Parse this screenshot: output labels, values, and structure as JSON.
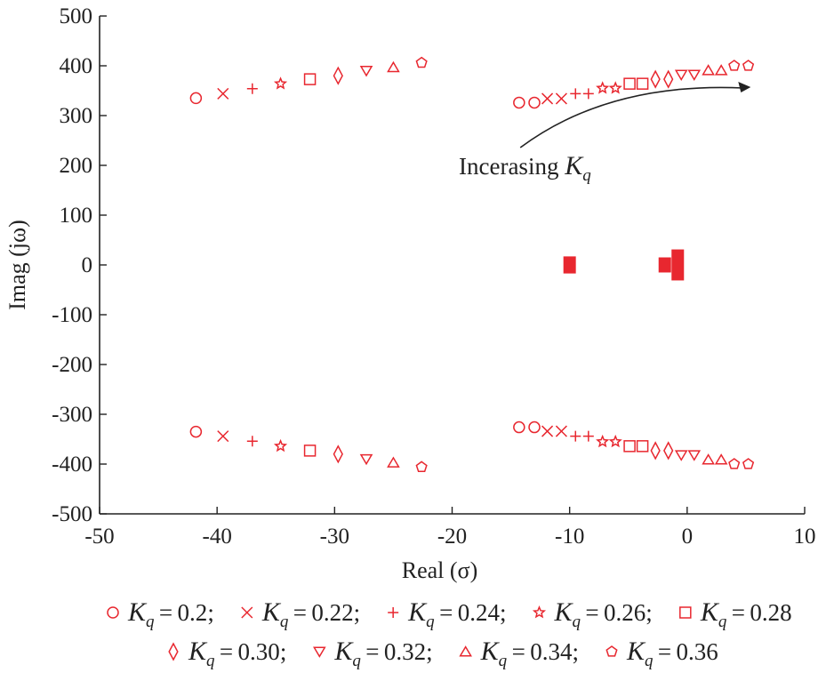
{
  "chart_data": {
    "type": "scatter",
    "xlabel": "Real (σ)",
    "ylabel": "Imag (jω)",
    "xlim": [
      -50,
      10
    ],
    "ylim": [
      -500,
      500
    ],
    "x_ticks": [
      -50,
      -40,
      -30,
      -20,
      -10,
      0,
      10
    ],
    "y_ticks": [
      500,
      400,
      300,
      200,
      100,
      0,
      -100,
      -200,
      -300,
      -400,
      -500
    ],
    "x_tick_labels": [
      "-50",
      "-40",
      "-30",
      "-20",
      "-10",
      "0",
      "10"
    ],
    "y_tick_labels": [
      "500",
      "400",
      "300",
      "200",
      "100",
      "0",
      "-100",
      "-200",
      "-300",
      "-400",
      "-500"
    ],
    "grid": false,
    "marker_color": "#e8272f",
    "annotation": {
      "text": "Incerasing ",
      "symbol": "K",
      "subscript": "q",
      "arrow_from": [
        -14.5,
        250
      ],
      "arrow_to": [
        4.5,
        350
      ]
    },
    "series": [
      {
        "name": "K_q = 0.2",
        "legend_label": "; ",
        "legend_value": "0.2",
        "marker": "circle",
        "points": [
          [
            -41.8,
            335
          ],
          [
            -41.8,
            -335
          ],
          [
            -14.3,
            326
          ],
          [
            -14.3,
            -326
          ],
          [
            -13.0,
            326
          ],
          [
            -13.0,
            -326
          ]
        ]
      },
      {
        "name": "K_q = 0.22",
        "legend_label": "; ",
        "legend_value": "0.22",
        "marker": "x",
        "points": [
          [
            -39.5,
            344
          ],
          [
            -39.5,
            -344
          ],
          [
            -11.9,
            334
          ],
          [
            -11.9,
            -334
          ],
          [
            -10.7,
            334
          ],
          [
            -10.7,
            -334
          ]
        ]
      },
      {
        "name": "K_q = 0.24",
        "legend_label": "; ",
        "legend_value": "0.24",
        "marker": "plus",
        "points": [
          [
            -37.0,
            354
          ],
          [
            -37.0,
            -354
          ],
          [
            -9.5,
            344
          ],
          [
            -9.5,
            -344
          ],
          [
            -8.4,
            344
          ],
          [
            -8.4,
            -344
          ]
        ]
      },
      {
        "name": "K_q = 0.26",
        "legend_label": "; ",
        "legend_value": "0.26",
        "marker": "star",
        "points": [
          [
            -34.6,
            364
          ],
          [
            -34.6,
            -364
          ],
          [
            -7.2,
            355
          ],
          [
            -7.2,
            -355
          ],
          [
            -6.1,
            355
          ],
          [
            -6.1,
            -355
          ]
        ]
      },
      {
        "name": "K_q = 0.28",
        "legend_label": "",
        "legend_value": "0.28",
        "marker": "square",
        "points": [
          [
            -32.1,
            373
          ],
          [
            -32.1,
            -373
          ],
          [
            -4.9,
            364
          ],
          [
            -4.9,
            -364
          ],
          [
            -3.8,
            364
          ],
          [
            -3.8,
            -364
          ]
        ]
      },
      {
        "name": "K_q = 0.30",
        "legend_label": "; ",
        "legend_value": "0.30",
        "marker": "diamond",
        "points": [
          [
            -29.7,
            380
          ],
          [
            -29.7,
            -380
          ],
          [
            -2.7,
            373
          ],
          [
            -2.7,
            -373
          ],
          [
            -1.6,
            373
          ],
          [
            -1.6,
            -373
          ]
        ]
      },
      {
        "name": "K_q = 0.32",
        "legend_label": "; ",
        "legend_value": "0.32",
        "marker": "triangle-down",
        "points": [
          [
            -27.3,
            390
          ],
          [
            -27.3,
            -390
          ],
          [
            -0.5,
            382
          ],
          [
            -0.5,
            -382
          ],
          [
            0.6,
            382
          ],
          [
            0.6,
            -382
          ]
        ]
      },
      {
        "name": "K_q = 0.34",
        "legend_label": "; ",
        "legend_value": "0.34",
        "marker": "triangle-up",
        "points": [
          [
            -25.0,
            397
          ],
          [
            -25.0,
            -397
          ],
          [
            1.8,
            391
          ],
          [
            1.8,
            -391
          ],
          [
            2.9,
            391
          ],
          [
            2.9,
            -391
          ]
        ]
      },
      {
        "name": "K_q = 0.36",
        "legend_label": "",
        "legend_value": "0.36",
        "marker": "pentagon",
        "points": [
          [
            -22.6,
            406
          ],
          [
            -22.6,
            -406
          ],
          [
            4.0,
            400
          ],
          [
            4.0,
            -400
          ],
          [
            5.2,
            400
          ],
          [
            5.2,
            -400
          ]
        ]
      }
    ],
    "real_axis_clusters": [
      {
        "x": -10.0,
        "y": 0,
        "spread_imag": 10
      },
      {
        "x": -1.9,
        "y": 0,
        "spread_imag": 8
      },
      {
        "x": -0.8,
        "y": 0,
        "spread_imag": 24
      }
    ]
  }
}
